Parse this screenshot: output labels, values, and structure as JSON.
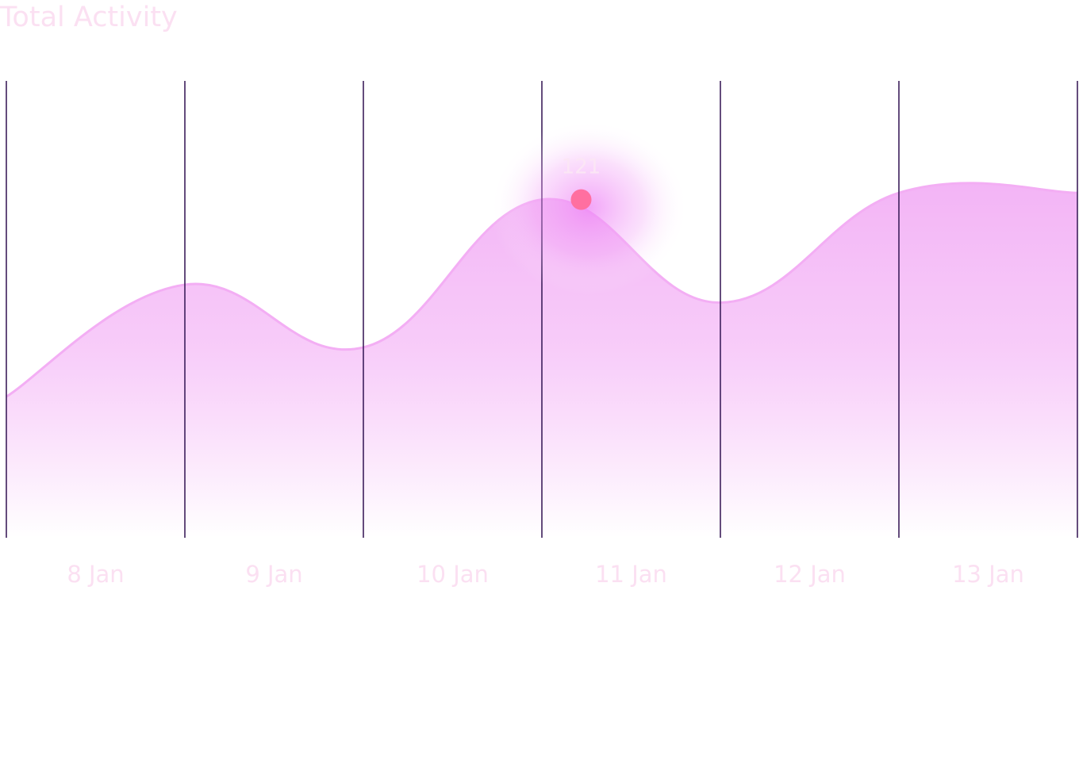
{
  "title": "Total Activity",
  "chart_data": {
    "type": "area",
    "title": "Total Activity",
    "categories": [
      "8 Jan",
      "9 Jan",
      "10 Jan",
      "11 Jan",
      "12 Jan",
      "13 Jan"
    ],
    "x": [
      0,
      1,
      2,
      3,
      4,
      5,
      6
    ],
    "values": [
      33,
      83,
      55,
      121,
      75,
      124,
      124
    ],
    "highlight": {
      "x": 3.22,
      "value": 121,
      "label": "121"
    },
    "ylim": [
      -30,
      174
    ],
    "grid": true,
    "legend": "none",
    "colors": {
      "area_top": "#f4b6f7",
      "area_bottom": "#ffffff",
      "stroke": "#f3aef4",
      "gridline": "#3d1f5c",
      "marker": "#ff6fa0",
      "glow": "#f28ef7",
      "text": "#fbe0f2"
    }
  }
}
